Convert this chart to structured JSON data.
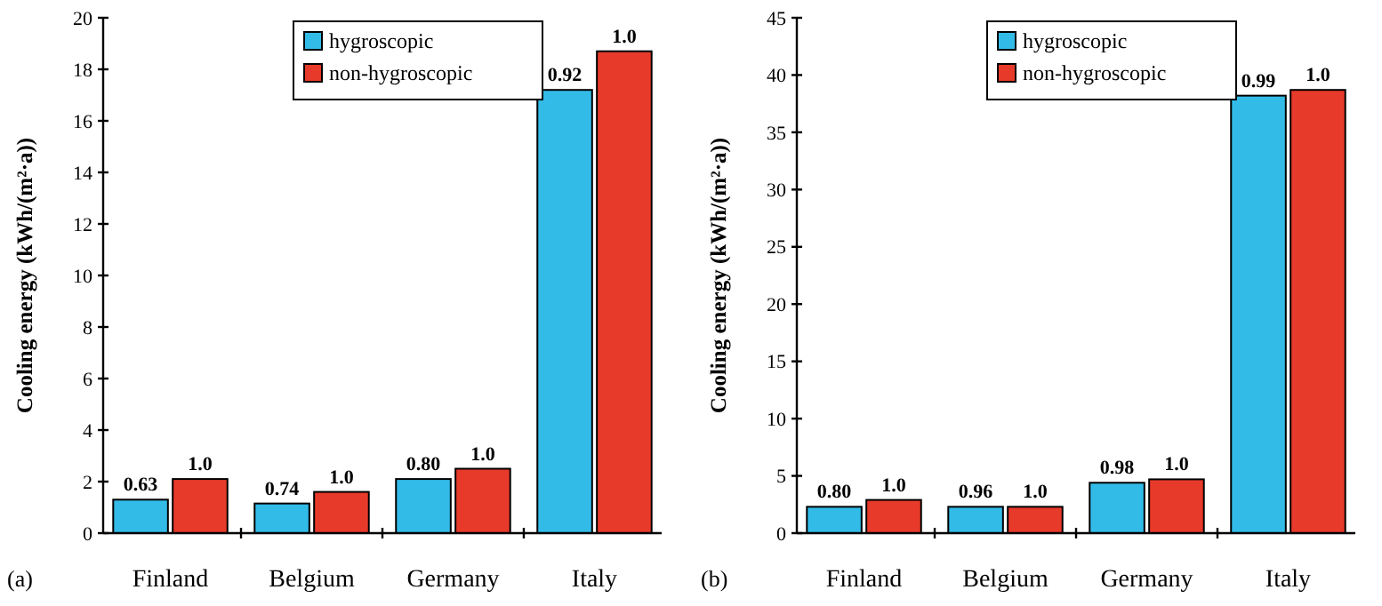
{
  "chart_data": [
    {
      "type": "bar",
      "ylabel": "Cooling energy (kWh/(m²·a))",
      "categories": [
        "Finland",
        "Belgium",
        "Germany",
        "Italy"
      ],
      "ylim": [
        0,
        20
      ],
      "yticks": [
        0,
        2,
        4,
        6,
        8,
        10,
        12,
        14,
        16,
        18,
        20
      ],
      "legend": "top",
      "annotations": [
        "(a)",
        {
          "text": "0.63",
          "x": "Finland",
          "y": 1.3
        },
        {
          "text": "1.0",
          "x": "Finland",
          "y": 2.1
        },
        {
          "text": "0.74",
          "x": "Belgium",
          "y": 1.15
        },
        {
          "text": "1.0",
          "x": "Belgium",
          "y": 1.6
        },
        {
          "text": "0.80",
          "x": "Germany",
          "y": 2.1
        },
        {
          "text": "1.0",
          "x": "Germany",
          "y": 2.5
        },
        {
          "text": "0.92",
          "x": "Italy",
          "y": 17.2
        },
        {
          "text": "1.0",
          "x": "Italy",
          "y": 18.7
        }
      ],
      "series": [
        {
          "name": "hygroscopic",
          "color": "#33bbe8",
          "values": [
            1.3,
            1.15,
            2.1,
            17.2
          ]
        },
        {
          "name": "non-hygroscopic",
          "color": "#e83a2a",
          "values": [
            2.1,
            1.6,
            2.5,
            18.7
          ]
        }
      ]
    },
    {
      "type": "bar",
      "ylabel": "Cooling energy (kWh/(m²·a))",
      "categories": [
        "Finland",
        "Belgium",
        "Germany",
        "Italy"
      ],
      "ylim": [
        0,
        45
      ],
      "yticks": [
        0,
        5,
        10,
        15,
        20,
        25,
        30,
        35,
        40,
        45
      ],
      "legend": "top",
      "annotations": [
        "(b)",
        {
          "text": "0.80",
          "x": "Finland",
          "y": 2.3
        },
        {
          "text": "1.0",
          "x": "Finland",
          "y": 2.9
        },
        {
          "text": "0.96",
          "x": "Belgium",
          "y": 2.3
        },
        {
          "text": "1.0",
          "x": "Belgium",
          "y": 2.3
        },
        {
          "text": "0.98",
          "x": "Germany",
          "y": 4.4
        },
        {
          "text": "1.0",
          "x": "Germany",
          "y": 4.7
        },
        {
          "text": "0.99",
          "x": "Italy",
          "y": 38.2
        },
        {
          "text": "1.0",
          "x": "Italy",
          "y": 38.7
        }
      ],
      "series": [
        {
          "name": "hygroscopic",
          "color": "#33bbe8",
          "values": [
            2.3,
            2.3,
            4.4,
            38.2
          ]
        },
        {
          "name": "non-hygroscopic",
          "color": "#e83a2a",
          "values": [
            2.9,
            2.3,
            4.7,
            38.7
          ]
        }
      ]
    }
  ]
}
